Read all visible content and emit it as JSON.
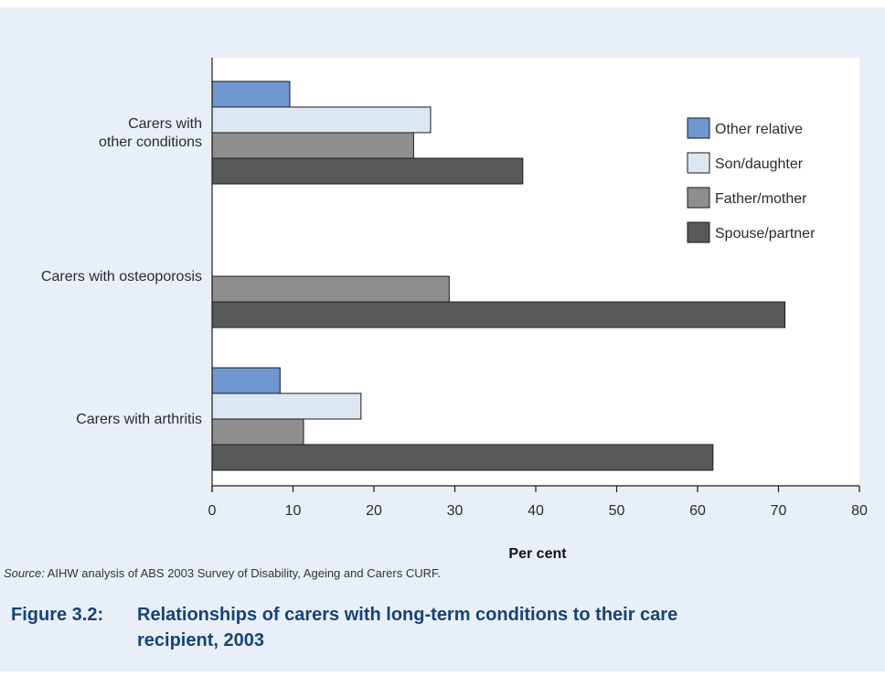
{
  "chart_data": {
    "type": "bar",
    "orientation": "horizontal",
    "categories": [
      "Carers with\nother conditions",
      "Carers with osteoporosis",
      "Carers with arthritis"
    ],
    "series": [
      {
        "name": "Other relative",
        "color": "#6f97cf",
        "values": [
          9.6,
          null,
          8.4
        ]
      },
      {
        "name": "Son/daughter",
        "color": "#dde7f4",
        "values": [
          27.0,
          null,
          18.4
        ]
      },
      {
        "name": "Father/mother",
        "color": "#8e8e8e",
        "values": [
          24.9,
          29.3,
          11.3
        ]
      },
      {
        "name": "Spouse/partner",
        "color": "#58595b",
        "values": [
          38.4,
          70.8,
          61.9
        ]
      }
    ],
    "xlabel": "Per cent",
    "xlim": [
      0,
      80
    ],
    "xticks": [
      0,
      10,
      20,
      30,
      40,
      50,
      60,
      70,
      80
    ],
    "legend_position": "right",
    "grid": false
  },
  "source": {
    "label": "Source:",
    "text": " AIHW analysis of ABS 2003 Survey of Disability, Ageing and Carers CURF."
  },
  "caption": {
    "number": "Figure 3.2:",
    "line1": "Relationships of carers with long-term conditions to their care",
    "line2": "recipient, 2003"
  }
}
